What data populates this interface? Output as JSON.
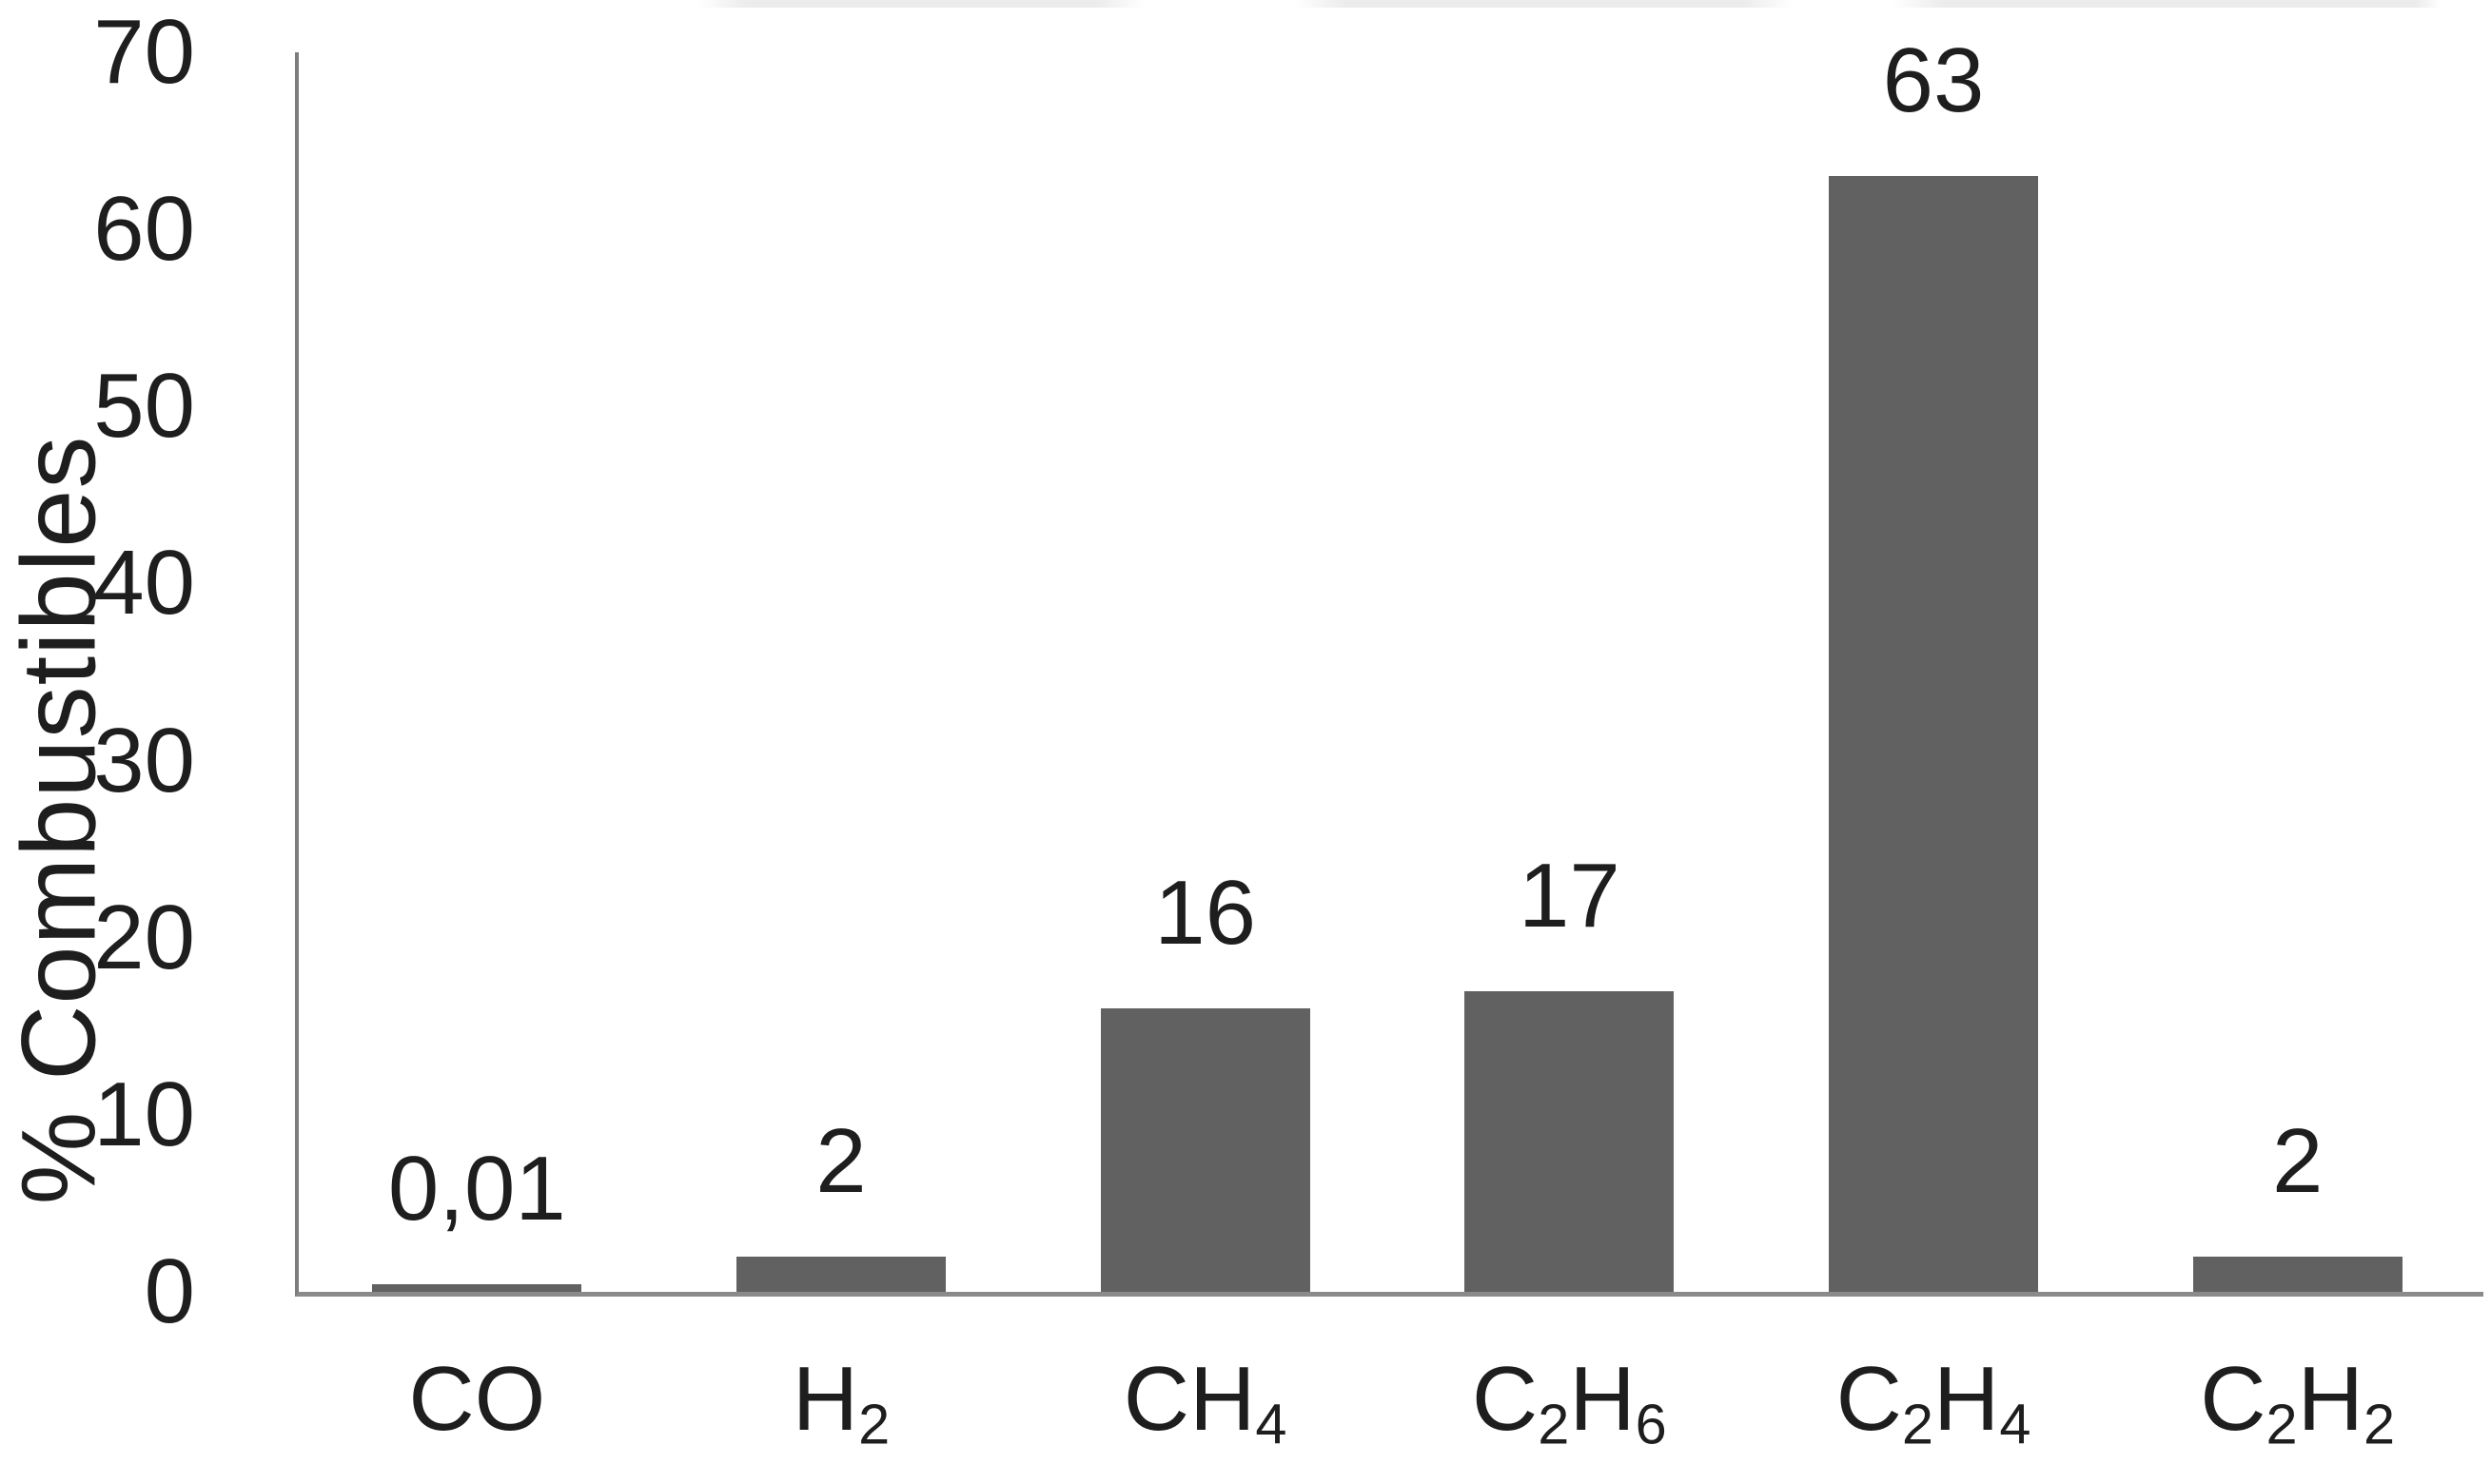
{
  "figure": {
    "background_color": "#ffffff",
    "text_color": "#1e1e1e",
    "axis_color": "#8a8a8a"
  },
  "chart_data": {
    "type": "bar",
    "title": "",
    "xlabel": "",
    "ylabel": "% Combustibles",
    "categories": [
      "CO",
      "H2",
      "CH4",
      "C2H6",
      "C2H4",
      "C2H2"
    ],
    "category_display": [
      [
        {
          "t": "CO",
          "sub": false
        }
      ],
      [
        {
          "t": "H",
          "sub": false
        },
        {
          "t": "2",
          "sub": true
        }
      ],
      [
        {
          "t": "CH",
          "sub": false
        },
        {
          "t": "4",
          "sub": true
        }
      ],
      [
        {
          "t": "C",
          "sub": false
        },
        {
          "t": "2",
          "sub": true
        },
        {
          "t": "H",
          "sub": false
        },
        {
          "t": "6",
          "sub": true
        }
      ],
      [
        {
          "t": "C",
          "sub": false
        },
        {
          "t": "2",
          "sub": true
        },
        {
          "t": "H",
          "sub": false
        },
        {
          "t": "4",
          "sub": true
        }
      ],
      [
        {
          "t": "C",
          "sub": false
        },
        {
          "t": "2",
          "sub": true
        },
        {
          "t": "H",
          "sub": false
        },
        {
          "t": "2",
          "sub": true
        }
      ]
    ],
    "values": [
      0.01,
      2,
      16,
      17,
      63,
      2
    ],
    "value_labels": [
      "0,01",
      "2",
      "16",
      "17",
      "63",
      "2"
    ],
    "ylim": [
      0,
      70
    ],
    "yticks": [
      0,
      10,
      20,
      30,
      40,
      50,
      60,
      70
    ],
    "grid": false,
    "legend": null,
    "bar_color": "#616161"
  }
}
